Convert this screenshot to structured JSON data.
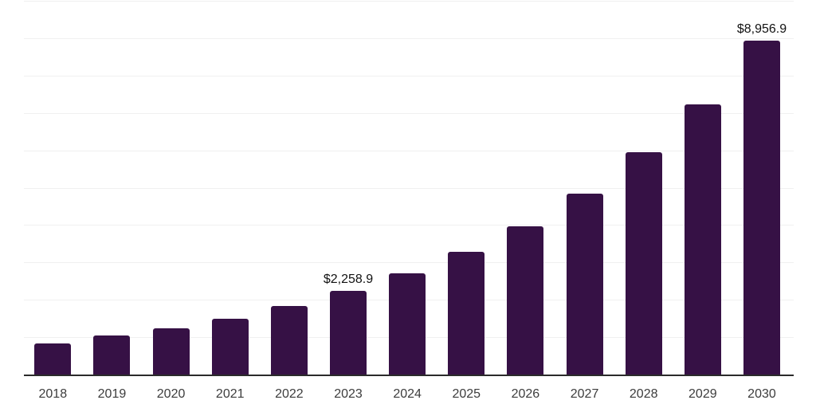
{
  "chart_data": {
    "type": "bar",
    "title": "",
    "xlabel": "",
    "ylabel": "",
    "categories": [
      "2018",
      "2019",
      "2020",
      "2021",
      "2022",
      "2023",
      "2024",
      "2025",
      "2026",
      "2027",
      "2028",
      "2029",
      "2030"
    ],
    "values": [
      860,
      1060,
      1250,
      1520,
      1850,
      2258.9,
      2725,
      3300,
      3985,
      4865,
      5960,
      7260,
      8956.9
    ],
    "value_labels": [
      "",
      "",
      "",
      "",
      "",
      "$2,258.9",
      "",
      "",
      "",
      "",
      "",
      "",
      "$8,956.9"
    ],
    "ylim": [
      0,
      10000
    ],
    "gridline_step": 1000,
    "grid": "horizontal",
    "legend_position": "none",
    "y_axis_tick_labels_visible": false,
    "colors": {
      "bar": "#361145",
      "gridline": "#f0f0f0",
      "axis_line": "#2b2b2b",
      "tick_label": "#3c3c3c",
      "value_label": "#121212",
      "background": "#ffffff"
    }
  }
}
